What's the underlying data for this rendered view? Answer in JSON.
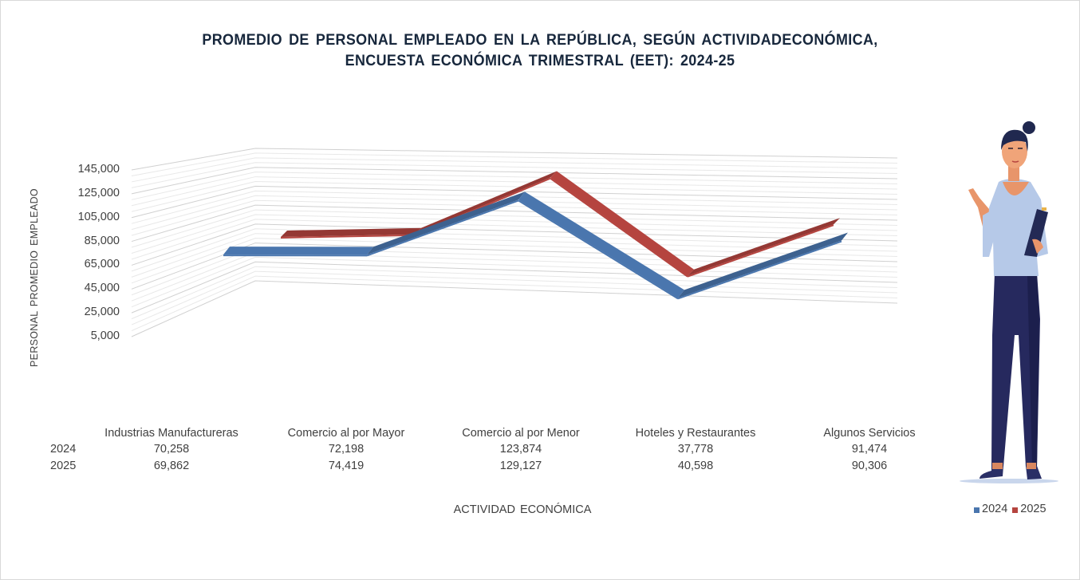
{
  "chart_data": {
    "type": "line",
    "variant": "3d-line",
    "title": "PROMEDIO DE PERSONAL EMPLEADO EN LA REPÚBLICA, SEGÚN ACTIVIDADECONÓMICA,",
    "subtitle": "ENCUESTA ECONÓMICA TRIMESTRAL (EET):   2024-25",
    "xlabel": "ACTIVIDAD ECONÓMICA",
    "ylabel": "PERSONAL PROMEDIO EMPLEADO",
    "ylim": [
      5000,
      145000
    ],
    "yticks": [
      "145,000",
      "125,000",
      "105,000",
      "85,000",
      "65,000",
      "45,000",
      "25,000",
      "5,000"
    ],
    "ytick_values": [
      145000,
      125000,
      105000,
      85000,
      65000,
      45000,
      25000,
      5000
    ],
    "grid": true,
    "categories": [
      "Industrias Manufactureras",
      "Comercio al por Mayor",
      "Comercio al por Menor",
      "Hoteles y Restaurantes",
      "Algunos Servicios"
    ],
    "series": [
      {
        "name": "2024",
        "color": "#4a76ae",
        "values": [
          70258,
          72198,
          123874,
          37778,
          91474
        ],
        "labels": [
          "70,258",
          "72,198",
          "123,874",
          "37,778",
          "91,474"
        ]
      },
      {
        "name": "2025",
        "color": "#b5443f",
        "values": [
          69862,
          74419,
          129127,
          40598,
          90306
        ],
        "labels": [
          "69,862",
          "74,419",
          "129,127",
          "40,598",
          "90,306"
        ]
      }
    ],
    "data_table": true,
    "legend_position": "bottom-right"
  },
  "illustration": "woman-presenter-with-clipboard"
}
